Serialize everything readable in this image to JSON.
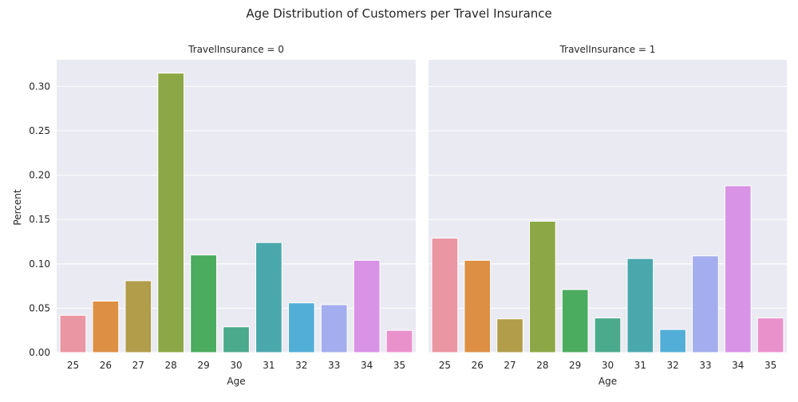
{
  "chart_data": {
    "type": "bar",
    "title": "Age Distribution of Customers per Travel Insurance",
    "xlabel": "Age",
    "ylabel": "Percent",
    "ylim": [
      0,
      0.33
    ],
    "yticks": [
      "0.00",
      "0.05",
      "0.10",
      "0.15",
      "0.20",
      "0.25",
      "0.30"
    ],
    "grid": true,
    "categories": [
      "25",
      "26",
      "27",
      "28",
      "29",
      "30",
      "31",
      "32",
      "33",
      "34",
      "35"
    ],
    "colors": [
      "#ea96a3",
      "#dd8f44",
      "#b19d4a",
      "#8ca745",
      "#4bab5f",
      "#4aaa8b",
      "#4aa8ac",
      "#52aed7",
      "#a4aded",
      "#d892e6",
      "#e991cb"
    ],
    "panels": [
      {
        "title": "TravelInsurance = 0",
        "values": [
          0.042,
          0.058,
          0.081,
          0.315,
          0.11,
          0.029,
          0.124,
          0.056,
          0.054,
          0.104,
          0.025
        ]
      },
      {
        "title": "TravelInsurance = 1",
        "values": [
          0.129,
          0.104,
          0.038,
          0.148,
          0.071,
          0.039,
          0.106,
          0.026,
          0.109,
          0.188,
          0.039
        ]
      }
    ]
  }
}
